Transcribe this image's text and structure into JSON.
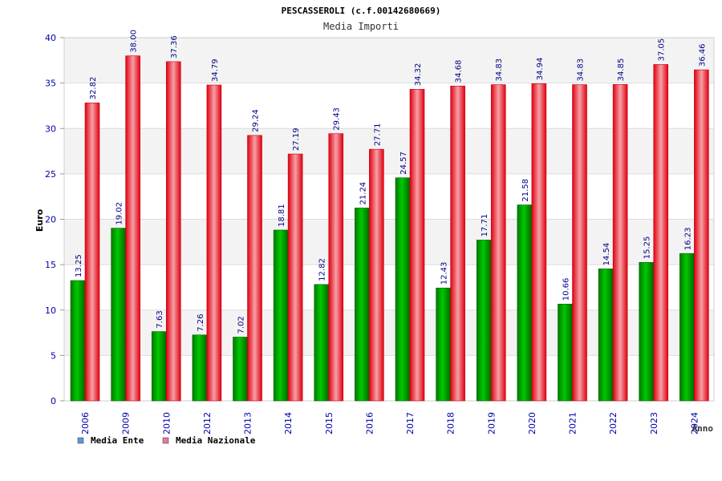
{
  "chart_data": {
    "type": "bar",
    "title": "PESCASSEROLI (c.f.00142680669)",
    "subtitle": "Media Importi",
    "xlabel": "Anno",
    "ylabel": "Euro",
    "ylim": [
      0,
      40
    ],
    "yticks": [
      0,
      5,
      10,
      15,
      20,
      25,
      30,
      35,
      40
    ],
    "yticks_labels": [
      "0",
      "5",
      "10",
      "15",
      "20",
      "25",
      "30",
      "35",
      "40"
    ],
    "grid": true,
    "legend_position": "bottom-left",
    "categories": [
      "2006",
      "2009",
      "2010",
      "2012",
      "2013",
      "2014",
      "2015",
      "2016",
      "2017",
      "2018",
      "2019",
      "2020",
      "2021",
      "2022",
      "2023",
      "2024"
    ],
    "series": [
      {
        "name": "Media Ente",
        "color": "#00a800",
        "legend_color": "#5599e6",
        "values": [
          13.25,
          19.02,
          7.63,
          7.26,
          7.02,
          18.81,
          12.82,
          21.24,
          24.57,
          12.43,
          17.71,
          21.58,
          10.66,
          14.54,
          15.25,
          16.23
        ],
        "labels": [
          "13.25",
          "19.02",
          "7.63",
          "7.26",
          "7.02",
          "18.81",
          "12.82",
          "21.24",
          "24.57",
          "12.43",
          "17.71",
          "21.58",
          "10.66",
          "14.54",
          "15.25",
          "16.23"
        ]
      },
      {
        "name": "Media Nazionale",
        "color": "#e8141e",
        "legend_color": "#e07aa8",
        "values": [
          32.82,
          38.0,
          37.36,
          34.79,
          29.24,
          27.19,
          29.43,
          27.71,
          34.32,
          34.68,
          34.83,
          34.94,
          34.83,
          34.85,
          37.05,
          36.46
        ],
        "labels": [
          "32.82",
          "38.00",
          "37.36",
          "34.79",
          "29.24",
          "27.19",
          "29.43",
          "27.71",
          "34.32",
          "34.68",
          "34.83",
          "34.94",
          "34.83",
          "34.85",
          "37.05",
          "36.46"
        ]
      }
    ]
  }
}
